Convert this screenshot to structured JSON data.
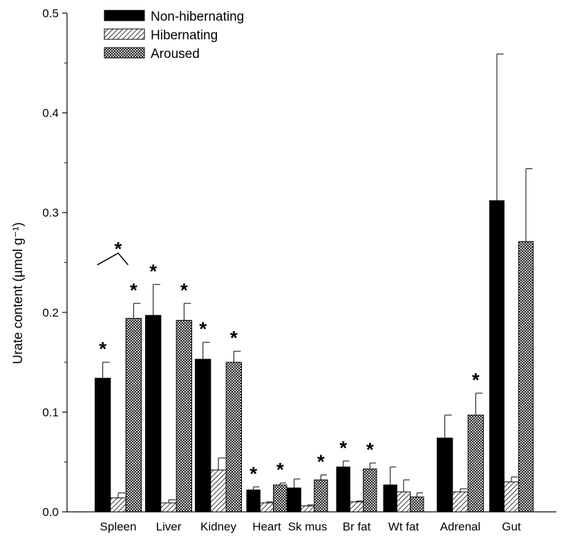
{
  "chart_data": {
    "type": "bar",
    "title": "",
    "xlabel": "",
    "ylabel": "Urate content (µmol g⁻¹)",
    "ylim": [
      0,
      0.5
    ],
    "yticks": [
      "0.0",
      "0.1",
      "0.2",
      "0.3",
      "0.4",
      "0.5"
    ],
    "grid": false,
    "legend_position": "top-left",
    "categories": [
      "Spleen",
      "Liver",
      "Kidney",
      "Heart",
      "Sk mus",
      "Br fat",
      "Wt fat",
      "Adrenal",
      "Gut"
    ],
    "series": [
      {
        "name": "Non-hibernating",
        "pattern": "solid",
        "values": [
          0.134,
          0.197,
          0.153,
          0.022,
          0.024,
          0.045,
          0.027,
          0.074,
          0.312
        ],
        "errors": [
          0.016,
          0.031,
          0.017,
          0.003,
          0.009,
          0.006,
          0.018,
          0.023,
          0.147
        ],
        "significance": [
          true,
          true,
          true,
          true,
          false,
          true,
          false,
          false,
          false
        ]
      },
      {
        "name": "Hibernating",
        "pattern": "hatched",
        "values": [
          0.014,
          0.009,
          0.042,
          0.009,
          0.006,
          0.01,
          0.02,
          0.02,
          0.03
        ],
        "errors": [
          0.005,
          0.003,
          0.012,
          0.001,
          0.001,
          0.001,
          0.012,
          0.003,
          0.005
        ],
        "significance": [
          false,
          false,
          false,
          false,
          false,
          false,
          false,
          false,
          false
        ]
      },
      {
        "name": "Aroused",
        "pattern": "crosshatched",
        "values": [
          0.194,
          0.192,
          0.15,
          0.027,
          0.032,
          0.043,
          0.015,
          0.097,
          0.271
        ],
        "errors": [
          0.015,
          0.017,
          0.011,
          0.002,
          0.005,
          0.006,
          0.004,
          0.022,
          0.073
        ],
        "significance": [
          true,
          true,
          true,
          true,
          true,
          true,
          false,
          true,
          false
        ]
      }
    ],
    "bracket_annotation": {
      "category": "Spleen",
      "between": [
        "Non-hibernating",
        "Aroused"
      ],
      "label": "*"
    },
    "colors": {
      "solid": "#000000",
      "hatch": "#000000",
      "background": "#ffffff"
    }
  }
}
